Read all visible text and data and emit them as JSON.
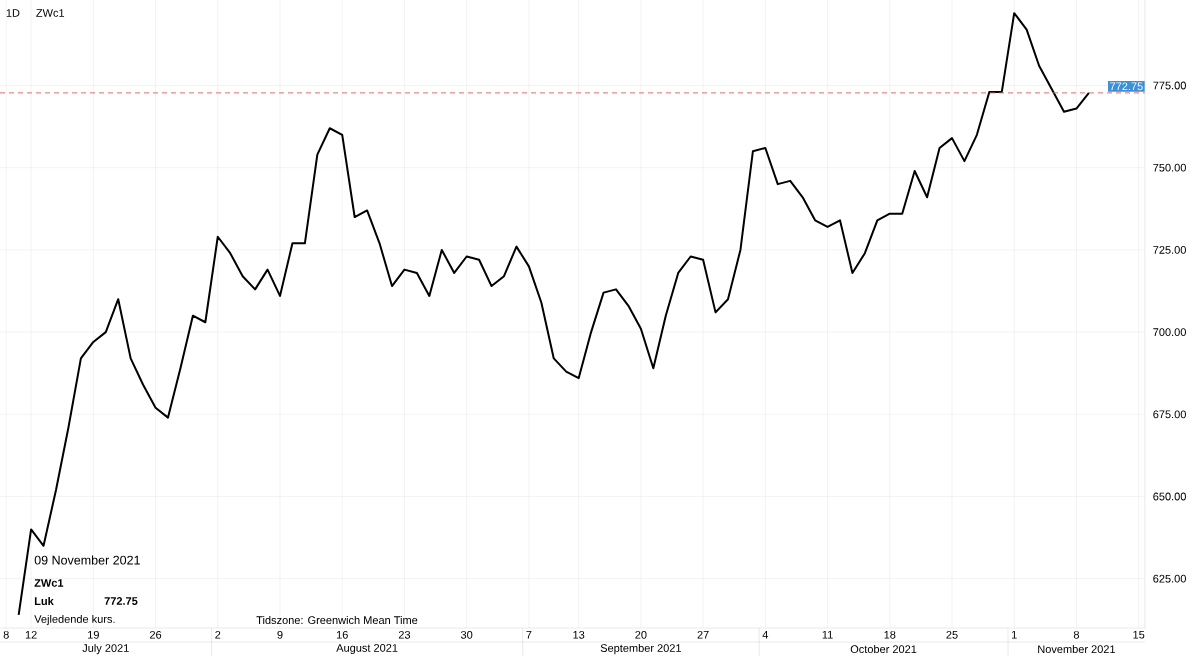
{
  "chart_data": {
    "type": "line",
    "title": "ZWc1",
    "subtitle": "1D",
    "categories": [
      "8",
      null,
      "12",
      null,
      null,
      null,
      null,
      "19",
      null,
      null,
      null,
      null,
      "26",
      null,
      null,
      null,
      null,
      "2",
      null,
      null,
      null,
      null,
      "9",
      null,
      null,
      null,
      null,
      "16",
      null,
      null,
      null,
      null,
      "23",
      null,
      null,
      null,
      null,
      "30",
      null,
      null,
      null,
      null,
      "7",
      null,
      null,
      null,
      "13",
      null,
      null,
      null,
      null,
      "20",
      null,
      null,
      null,
      null,
      "27",
      null,
      null,
      null,
      null,
      "4",
      null,
      null,
      null,
      null,
      "11",
      null,
      null,
      null,
      null,
      "18",
      null,
      null,
      null,
      null,
      "25",
      null,
      null,
      null,
      null,
      "1",
      null,
      null,
      null,
      null,
      "8",
      null,
      null,
      null,
      null,
      "15"
    ],
    "values": [
      null,
      614,
      640,
      635,
      652,
      671,
      692,
      697,
      700,
      710,
      692,
      684,
      677,
      674,
      689,
      705,
      703,
      729,
      724,
      717,
      713,
      719,
      711,
      727,
      727,
      754,
      762,
      760,
      735,
      737,
      727,
      714,
      719,
      718,
      711,
      725,
      718,
      723,
      722,
      714,
      717,
      726,
      720,
      709,
      692,
      688,
      686,
      700,
      712,
      713,
      708,
      701,
      689,
      705,
      718,
      723,
      722,
      706,
      710,
      725,
      755,
      756,
      745,
      746,
      741,
      734,
      732,
      734,
      718,
      724,
      734,
      736,
      736,
      749,
      741,
      756,
      759,
      752,
      760,
      773,
      773,
      797,
      792,
      781,
      774,
      767,
      768,
      772.75,
      null,
      null,
      null,
      null
    ],
    "color": "#000000",
    "ylim": [
      610,
      801
    ],
    "yticks": [
      {
        "value": 625,
        "label": "625.00"
      },
      {
        "value": 650,
        "label": "650.00"
      },
      {
        "value": 675,
        "label": "675.00"
      },
      {
        "value": 700,
        "label": "700.00"
      },
      {
        "value": 725,
        "label": "725.00"
      },
      {
        "value": 750,
        "label": "750.00"
      },
      {
        "value": 775,
        "label": "775.00"
      }
    ],
    "grid": true,
    "ref_lines": [
      {
        "axis": "y",
        "value": 772.75,
        "label": "772.75",
        "color": "#e05a5a",
        "line_style": "dashed"
      }
    ],
    "annotations": [
      "09 November 2021",
      "ZWc1",
      "Luk",
      "772.75",
      "Vejledende kurs.",
      "Tidszone: Greenwich Mean Time",
      "July 2021",
      "August 2021",
      "September 2021",
      "October 2021",
      "November 2021"
    ]
  }
}
